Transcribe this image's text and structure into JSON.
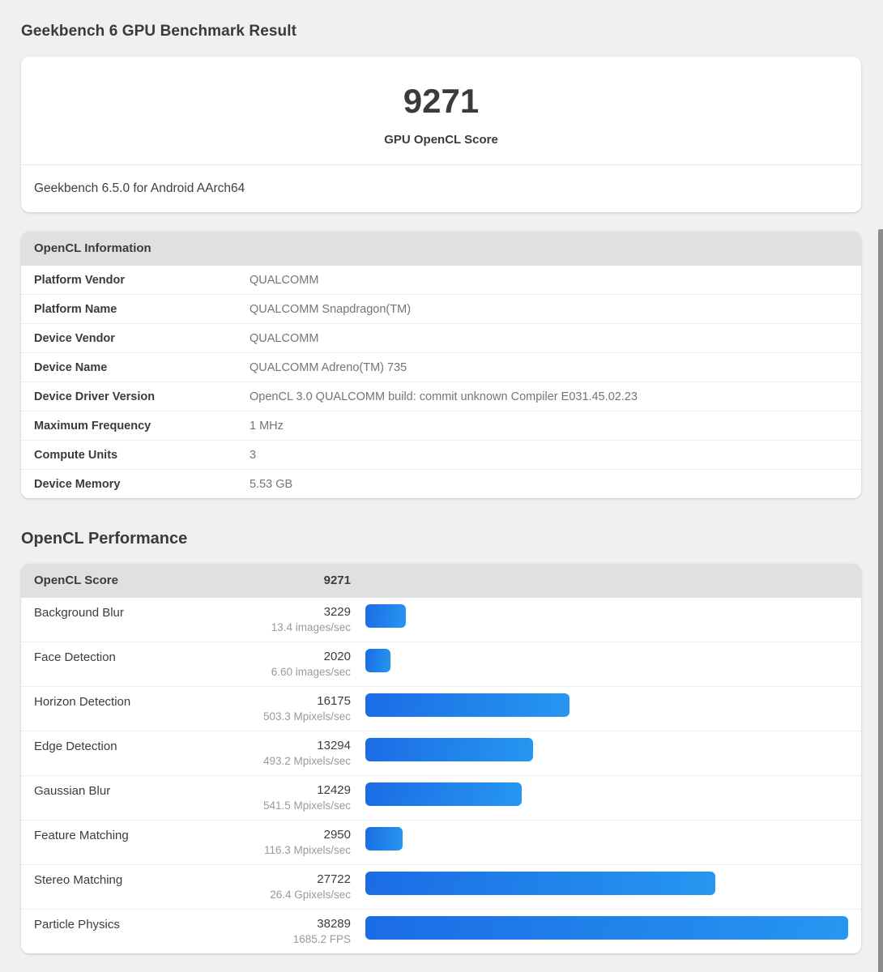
{
  "page": {
    "title": "Geekbench 6 GPU Benchmark Result"
  },
  "summary": {
    "score": "9271",
    "score_label": "GPU OpenCL Score",
    "version_line": "Geekbench 6.5.0 for Android AArch64"
  },
  "info": {
    "header": "OpenCL Information",
    "rows": [
      {
        "label": "Platform Vendor",
        "value": "QUALCOMM"
      },
      {
        "label": "Platform Name",
        "value": "QUALCOMM Snapdragon(TM)"
      },
      {
        "label": "Device Vendor",
        "value": "QUALCOMM"
      },
      {
        "label": "Device Name",
        "value": "QUALCOMM Adreno(TM) 735"
      },
      {
        "label": "Device Driver Version",
        "value": "OpenCL 3.0 QUALCOMM build: commit unknown Compiler E031.45.02.23"
      },
      {
        "label": "Maximum Frequency",
        "value": "1 MHz"
      },
      {
        "label": "Compute Units",
        "value": "3"
      },
      {
        "label": "Device Memory",
        "value": "5.53 GB"
      }
    ]
  },
  "performance": {
    "heading": "OpenCL Performance",
    "header": {
      "label": "OpenCL Score",
      "score": "9271"
    },
    "workloads": [
      {
        "name": "Background Blur",
        "score": 3229,
        "rate": "13.4 images/sec"
      },
      {
        "name": "Face Detection",
        "score": 2020,
        "rate": "6.60 images/sec"
      },
      {
        "name": "Horizon Detection",
        "score": 16175,
        "rate": "503.3 Mpixels/sec"
      },
      {
        "name": "Edge Detection",
        "score": 13294,
        "rate": "493.2 Mpixels/sec"
      },
      {
        "name": "Gaussian Blur",
        "score": 12429,
        "rate": "541.5 Mpixels/sec"
      },
      {
        "name": "Feature Matching",
        "score": 2950,
        "rate": "116.3 Mpixels/sec"
      },
      {
        "name": "Stereo Matching",
        "score": 27722,
        "rate": "26.4 Gpixels/sec"
      },
      {
        "name": "Particle Physics",
        "score": 38289,
        "rate": "1685.2 FPS"
      }
    ]
  },
  "colors": {
    "bar_gradient_start": "#1b6ce5",
    "bar_gradient_end": "#2697f0",
    "table_header_bg": "#e0e0e0",
    "page_bg": "#f0f0f0",
    "scrollbar": "#8d8d8d"
  }
}
